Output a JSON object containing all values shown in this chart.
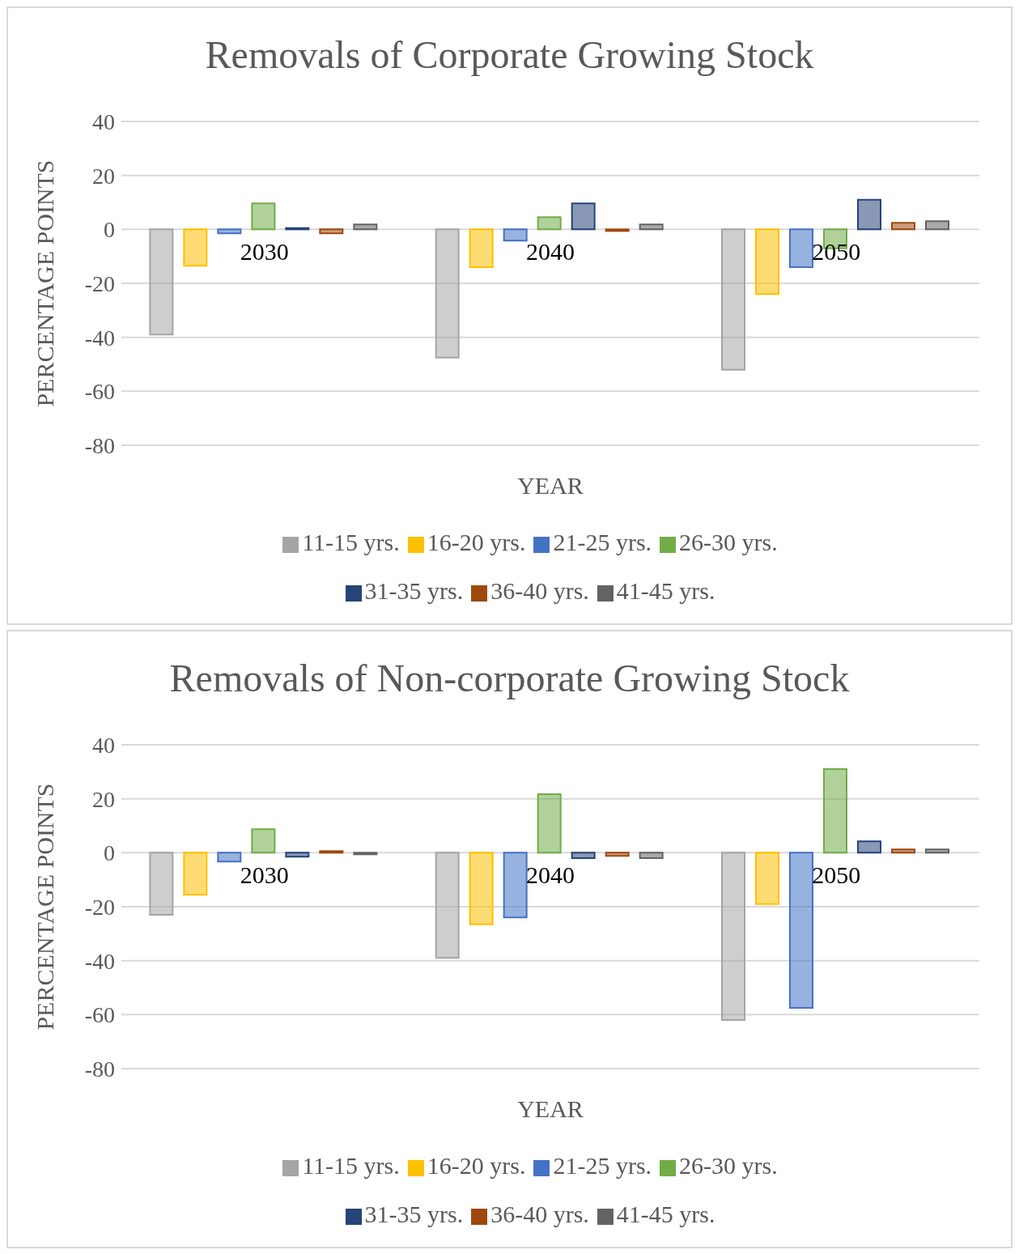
{
  "chart_data": [
    {
      "type": "bar",
      "title": "Removals  of Corporate  Growing  Stock",
      "xlabel": "YEAR",
      "ylabel": "PERCENTAGE POINTS",
      "categories": [
        "2030",
        "2040",
        "2050"
      ],
      "ylim": [
        -80,
        40
      ],
      "yticks": [
        -80,
        -60,
        -40,
        -20,
        0,
        20,
        40
      ],
      "grid": "y",
      "legend": "bottom",
      "series": [
        {
          "name": "11-15 yrs.",
          "color": "#a5a5a5",
          "values": [
            -39,
            -47.5,
            -52
          ]
        },
        {
          "name": "16-20 yrs.",
          "color": "#ffc000",
          "values": [
            -13.5,
            -14,
            -24
          ]
        },
        {
          "name": "21-25 yrs.",
          "color": "#4472c4",
          "values": [
            -1.5,
            -4.2,
            -14
          ]
        },
        {
          "name": "26-30 yrs.",
          "color": "#70ad47",
          "values": [
            9.6,
            4.5,
            -7
          ]
        },
        {
          "name": "31-35 yrs.",
          "color": "#264478",
          "values": [
            0.5,
            9.6,
            11
          ]
        },
        {
          "name": "36-40 yrs.",
          "color": "#9e480e",
          "values": [
            -1.5,
            -0.6,
            2.4
          ]
        },
        {
          "name": "41-45 yrs.",
          "color": "#636363",
          "values": [
            1.8,
            1.8,
            3
          ]
        }
      ]
    },
    {
      "type": "bar",
      "title": "Removals  of Non-corporate  Growing  Stock",
      "xlabel": "YEAR",
      "ylabel": "PERCENTAGE POINTS",
      "categories": [
        "2030",
        "2040",
        "2050"
      ],
      "ylim": [
        -80,
        40
      ],
      "yticks": [
        -80,
        -60,
        -40,
        -20,
        0,
        20,
        40
      ],
      "grid": "y",
      "legend": "bottom",
      "series": [
        {
          "name": "11-15 yrs.",
          "color": "#a5a5a5",
          "values": [
            -23,
            -39,
            -62
          ]
        },
        {
          "name": "16-20 yrs.",
          "color": "#ffc000",
          "values": [
            -15.6,
            -26.5,
            -19
          ]
        },
        {
          "name": "21-25 yrs.",
          "color": "#4472c4",
          "values": [
            -3.3,
            -24,
            -57.5
          ]
        },
        {
          "name": "26-30 yrs.",
          "color": "#70ad47",
          "values": [
            8.7,
            21.7,
            31
          ]
        },
        {
          "name": "31-35 yrs.",
          "color": "#264478",
          "values": [
            -1.5,
            -2,
            4.2
          ]
        },
        {
          "name": "36-40 yrs.",
          "color": "#9e480e",
          "values": [
            0.6,
            -1.2,
            1.2
          ]
        },
        {
          "name": "41-45 yrs.",
          "color": "#636363",
          "values": [
            -0.6,
            -2,
            1.2
          ]
        }
      ]
    }
  ]
}
